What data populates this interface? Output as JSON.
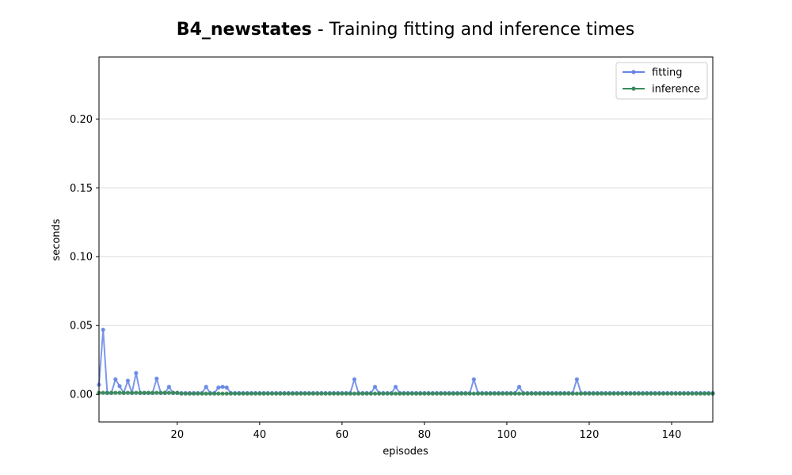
{
  "chart_data": {
    "type": "line",
    "title_bold": "B4_newstates",
    "title_rest": " - Training fitting and inference times",
    "xlabel": "episodes",
    "ylabel": "seconds",
    "xlim": [
      1,
      150
    ],
    "ylim": [
      -0.02,
      0.245
    ],
    "xticks": [
      20,
      40,
      60,
      80,
      100,
      120,
      140
    ],
    "yticks": [
      0.0,
      0.05,
      0.1,
      0.15,
      0.2
    ],
    "ytick_labels": [
      "0.00",
      "0.05",
      "0.10",
      "0.15",
      "0.20"
    ],
    "grid_y": true,
    "legend_position": "top-right",
    "series": [
      {
        "name": "fitting",
        "color": "#6685e6",
        "x": [
          1,
          2,
          3,
          4,
          5,
          6,
          7,
          8,
          9,
          10,
          11,
          12,
          13,
          14,
          15,
          16,
          17,
          18,
          19,
          20,
          21,
          22,
          23,
          24,
          25,
          26,
          27,
          28,
          29,
          30,
          31,
          32,
          33,
          34,
          35,
          36,
          37,
          38,
          39,
          40,
          41,
          42,
          43,
          44,
          45,
          46,
          47,
          48,
          49,
          50,
          51,
          52,
          53,
          54,
          55,
          56,
          57,
          58,
          59,
          60,
          61,
          62,
          63,
          64,
          65,
          66,
          67,
          68,
          69,
          70,
          71,
          72,
          73,
          74,
          75,
          76,
          77,
          78,
          79,
          80,
          81,
          82,
          83,
          84,
          85,
          86,
          87,
          88,
          89,
          90,
          91,
          92,
          93,
          94,
          95,
          96,
          97,
          98,
          99,
          100,
          101,
          102,
          103,
          104,
          105,
          106,
          107,
          108,
          109,
          110,
          111,
          112,
          113,
          114,
          115,
          116,
          117,
          118,
          119,
          120,
          121,
          122,
          123,
          124,
          125,
          126,
          127,
          128,
          129,
          130,
          131,
          132,
          133,
          134,
          135,
          136,
          137,
          138,
          139,
          140,
          141,
          142,
          143,
          144,
          145,
          146,
          147,
          148,
          149,
          150
        ],
        "y": [
          0.007,
          0.047,
          0.001,
          0.001,
          0.011,
          0.006,
          0.001,
          0.01,
          0.001,
          0.0155,
          0.001,
          0.001,
          0.001,
          0.001,
          0.0115,
          0.001,
          0.001,
          0.0055,
          0.001,
          0.001,
          0.001,
          0.001,
          0.001,
          0.001,
          0.001,
          0.001,
          0.0055,
          0.001,
          0.001,
          0.005,
          0.0055,
          0.005,
          0.001,
          0.001,
          0.001,
          0.001,
          0.001,
          0.001,
          0.001,
          0.001,
          0.001,
          0.001,
          0.001,
          0.001,
          0.001,
          0.001,
          0.001,
          0.001,
          0.001,
          0.001,
          0.001,
          0.001,
          0.001,
          0.001,
          0.001,
          0.001,
          0.001,
          0.001,
          0.001,
          0.001,
          0.001,
          0.001,
          0.011,
          0.001,
          0.001,
          0.001,
          0.001,
          0.0055,
          0.001,
          0.001,
          0.001,
          0.001,
          0.0055,
          0.001,
          0.001,
          0.001,
          0.001,
          0.001,
          0.001,
          0.001,
          0.001,
          0.001,
          0.001,
          0.001,
          0.001,
          0.001,
          0.001,
          0.001,
          0.001,
          0.001,
          0.001,
          0.011,
          0.001,
          0.001,
          0.001,
          0.001,
          0.001,
          0.001,
          0.001,
          0.001,
          0.001,
          0.001,
          0.0055,
          0.001,
          0.001,
          0.001,
          0.001,
          0.001,
          0.001,
          0.001,
          0.001,
          0.001,
          0.001,
          0.001,
          0.001,
          0.001,
          0.011,
          0.001,
          0.001,
          0.001,
          0.001,
          0.001,
          0.001,
          0.001,
          0.001,
          0.001,
          0.001,
          0.001,
          0.001,
          0.001,
          0.001,
          0.001,
          0.001,
          0.001,
          0.001,
          0.001,
          0.001,
          0.001,
          0.001,
          0.001,
          0.001,
          0.001,
          0.001,
          0.001,
          0.001,
          0.001,
          0.001,
          0.001,
          0.001,
          0.001
        ]
      },
      {
        "name": "inference",
        "color": "#3a8a5c",
        "x": [
          1,
          2,
          3,
          4,
          5,
          6,
          7,
          8,
          9,
          10,
          11,
          12,
          13,
          14,
          15,
          16,
          17,
          18,
          19,
          20,
          21,
          22,
          23,
          24,
          25,
          26,
          27,
          28,
          29,
          30,
          31,
          32,
          33,
          34,
          35,
          36,
          37,
          38,
          39,
          40,
          41,
          42,
          43,
          44,
          45,
          46,
          47,
          48,
          49,
          50,
          51,
          52,
          53,
          54,
          55,
          56,
          57,
          58,
          59,
          60,
          61,
          62,
          63,
          64,
          65,
          66,
          67,
          68,
          69,
          70,
          71,
          72,
          73,
          74,
          75,
          76,
          77,
          78,
          79,
          80,
          81,
          82,
          83,
          84,
          85,
          86,
          87,
          88,
          89,
          90,
          91,
          92,
          93,
          94,
          95,
          96,
          97,
          98,
          99,
          100,
          101,
          102,
          103,
          104,
          105,
          106,
          107,
          108,
          109,
          110,
          111,
          112,
          113,
          114,
          115,
          116,
          117,
          118,
          119,
          120,
          121,
          122,
          123,
          124,
          125,
          126,
          127,
          128,
          129,
          130,
          131,
          132,
          133,
          134,
          135,
          136,
          137,
          138,
          139,
          140,
          141,
          142,
          143,
          144,
          145,
          146,
          147,
          148,
          149,
          150
        ],
        "y": [
          0.0012,
          0.0012,
          0.0012,
          0.0012,
          0.0012,
          0.0012,
          0.0012,
          0.0012,
          0.0012,
          0.0012,
          0.0012,
          0.0012,
          0.0012,
          0.0012,
          0.0012,
          0.0012,
          0.0012,
          0.0012,
          0.0012,
          0.0012,
          0.0006,
          0.0006,
          0.0006,
          0.0006,
          0.0006,
          0.0006,
          0.0006,
          0.0006,
          0.0006,
          0.0006,
          0.0006,
          0.0006,
          0.0006,
          0.0006,
          0.0006,
          0.0006,
          0.0006,
          0.0006,
          0.0006,
          0.0006,
          0.0006,
          0.0006,
          0.0006,
          0.0006,
          0.0006,
          0.0006,
          0.0006,
          0.0006,
          0.0006,
          0.0006,
          0.0006,
          0.0006,
          0.0006,
          0.0006,
          0.0006,
          0.0006,
          0.0006,
          0.0006,
          0.0006,
          0.0006,
          0.0006,
          0.0006,
          0.0006,
          0.0006,
          0.0006,
          0.0006,
          0.0006,
          0.0006,
          0.0006,
          0.0006,
          0.0006,
          0.0006,
          0.0006,
          0.0006,
          0.0006,
          0.0006,
          0.0006,
          0.0006,
          0.0006,
          0.0006,
          0.0006,
          0.0006,
          0.0006,
          0.0006,
          0.0006,
          0.0006,
          0.0006,
          0.0006,
          0.0006,
          0.0006,
          0.0006,
          0.0006,
          0.0006,
          0.0006,
          0.0006,
          0.0006,
          0.0006,
          0.0006,
          0.0006,
          0.0006,
          0.0006,
          0.0006,
          0.0006,
          0.0006,
          0.0006,
          0.0006,
          0.0006,
          0.0006,
          0.0006,
          0.0006,
          0.0006,
          0.0006,
          0.0006,
          0.0006,
          0.0006,
          0.0006,
          0.0006,
          0.0006,
          0.0006,
          0.0006,
          0.0006,
          0.0006,
          0.0006,
          0.0006,
          0.0006,
          0.0006,
          0.0006,
          0.0006,
          0.0006,
          0.0006,
          0.0006,
          0.0006,
          0.0006,
          0.0006,
          0.0006,
          0.0006,
          0.0006,
          0.0006,
          0.0006,
          0.0006,
          0.0006,
          0.0006,
          0.0006,
          0.0006,
          0.0006,
          0.0006,
          0.0006,
          0.0006,
          0.0006,
          0.0006
        ]
      }
    ]
  }
}
